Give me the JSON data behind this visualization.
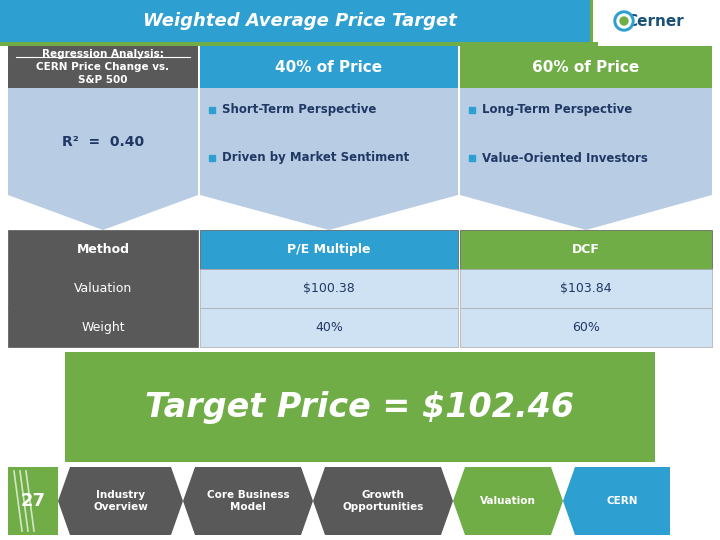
{
  "title": "Weighted Average Price Target",
  "title_bg": "#2e9fd1",
  "title_color": "#ffffff",
  "header_left_bg": "#595959",
  "header_left_color": "#ffffff",
  "r2_text": "R²  =  0.40",
  "r2_bg": "#b8cce4",
  "col2_header": "40% of Price",
  "col2_header_bg": "#2e9fd1",
  "col2_header_color": "#ffffff",
  "col3_header": "60% of Price",
  "col3_header_bg": "#70ad47",
  "col3_header_color": "#ffffff",
  "col2_items": [
    "Short-Term Perspective",
    "Driven by Market Sentiment"
  ],
  "col3_items": [
    "Long-Term Perspective",
    "Value-Oriented Investors"
  ],
  "body_bg": "#b8cce4",
  "table_rows": [
    [
      "Method",
      "P/E Multiple",
      "DCF"
    ],
    [
      "Valuation",
      "$100.38",
      "$103.84"
    ],
    [
      "Weight",
      "40%",
      "60%"
    ]
  ],
  "table_row0_col1_bg": "#2e9fd1",
  "table_row0_col2_bg": "#70ad47",
  "table_row0_col_color": "#ffffff",
  "table_left_bg": "#595959",
  "table_left_color": "#ffffff",
  "table_data_bg": "#cfe2f3",
  "table_data_color": "#1f3864",
  "target_price_text": "Target Price = $102.46",
  "target_price_bg": "#70ad47",
  "target_price_color": "#ffffff",
  "nav_items": [
    "27",
    "Industry\nOverview",
    "Core Business\nModel",
    "Growth\nOpportunities",
    "Valuation",
    "CERN"
  ],
  "nav_bg": [
    "#70ad47",
    "#595959",
    "#595959",
    "#595959",
    "#70ad47",
    "#2e9fd1"
  ],
  "nav_color": [
    "#ffffff",
    "#ffffff",
    "#ffffff",
    "#ffffff",
    "#ffffff",
    "#ffffff"
  ],
  "green_line_color": "#70ad47",
  "bg_color": "#ffffff"
}
